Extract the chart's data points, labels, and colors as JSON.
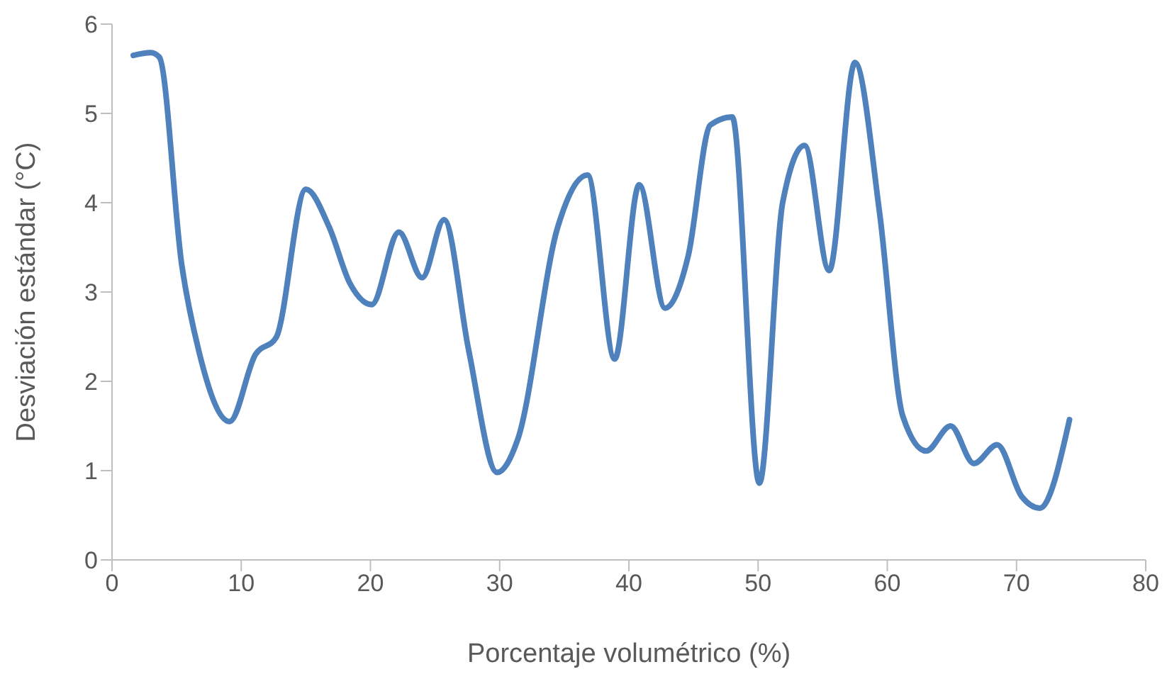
{
  "chart_data": {
    "type": "line",
    "xlabel": "Porcentaje volumétrico (%)",
    "ylabel": "Desviación estándar (°C)",
    "xlim": [
      0,
      80
    ],
    "xticks": [
      0,
      10,
      20,
      30,
      40,
      50,
      60,
      70,
      80
    ],
    "ylim": [
      0,
      6
    ],
    "yticks": [
      0,
      1,
      2,
      3,
      4,
      5,
      6
    ],
    "grid": false,
    "legend": false,
    "marker": "none",
    "line_style": "solid",
    "series": [
      {
        "color": "#4f81bd",
        "x": [
          1.65,
          3.0,
          3.66,
          5.4,
          6.7,
          9.1,
          11.1,
          12.7,
          15.0,
          16.8,
          18.4,
          20.1,
          22.2,
          24.0,
          25.7,
          27.6,
          29.8,
          31.4,
          34.5,
          36.8,
          38.9,
          40.8,
          42.8,
          44.6,
          46.3,
          48.0,
          50.1,
          51.9,
          53.6,
          55.5,
          57.5,
          59.4,
          61.2,
          63.0,
          64.9,
          66.7,
          68.5,
          70.4,
          71.8,
          74.1
        ],
        "values": [
          5.65,
          5.68,
          5.63,
          3.3,
          2.35,
          1.55,
          2.3,
          2.49,
          4.15,
          3.73,
          3.1,
          2.86,
          3.67,
          3.16,
          3.81,
          2.35,
          0.98,
          1.35,
          3.73,
          4.31,
          2.25,
          4.2,
          2.82,
          3.41,
          4.87,
          4.96,
          0.86,
          4.0,
          4.64,
          3.24,
          5.57,
          3.89,
          1.61,
          1.22,
          1.5,
          1.08,
          1.29,
          0.71,
          0.58,
          1.57
        ]
      }
    ]
  }
}
